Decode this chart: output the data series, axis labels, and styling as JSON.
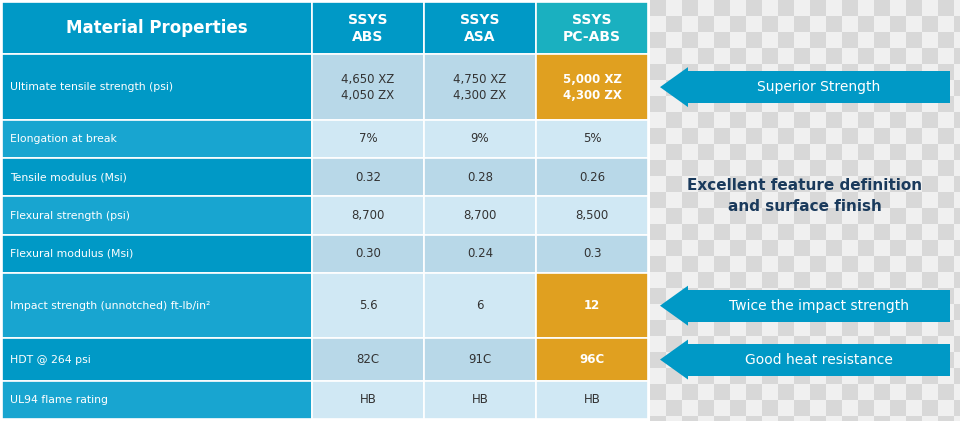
{
  "header_bg": "#0099c6",
  "header_pc_abs_bg": "#1ab0c0",
  "row_label_bg_dark": "#0099c6",
  "row_label_bg_light": "#18a5d0",
  "row_data_bg_dark": "#b8d8e8",
  "row_data_bg_light": "#d0e8f4",
  "highlight_orange": "#e0a020",
  "arrow_color": "#0099c6",
  "text_white": "#ffffff",
  "text_dark": "#1a3a5c",
  "text_cell_dark": "#444444",
  "headers": [
    "Material Properties",
    "SSYS\nABS",
    "SSYS\nASA",
    "SSYS\nPC-ABS"
  ],
  "rows": [
    {
      "label": "Ultimate tensile strength (psi)",
      "abs": "4,650 XZ\n4,050 ZX",
      "asa": "4,750 XZ\n4,300 ZX",
      "pcabs": "5,000 XZ\n4,300 ZX",
      "highlight": true,
      "tall": true
    },
    {
      "label": "Elongation at break",
      "abs": "7%",
      "asa": "9%",
      "pcabs": "5%",
      "highlight": false,
      "tall": false
    },
    {
      "label": "Tensile modulus (Msi)",
      "abs": "0.32",
      "asa": "0.28",
      "pcabs": "0.26",
      "highlight": false,
      "tall": false
    },
    {
      "label": "Flexural strength (psi)",
      "abs": "8,700",
      "asa": "8,700",
      "pcabs": "8,500",
      "highlight": false,
      "tall": false
    },
    {
      "label": "Flexural modulus (Msi)",
      "abs": "0.30",
      "asa": "0.24",
      "pcabs": "0.3",
      "highlight": false,
      "tall": false
    },
    {
      "label": "Impact strength (unnotched) ft-lb/in²",
      "abs": "5.6",
      "asa": "6",
      "pcabs": "12",
      "highlight": true,
      "tall": true
    },
    {
      "label": "HDT @ 264 psi",
      "abs": "82C",
      "asa": "91C",
      "pcabs": "96C",
      "highlight": true,
      "tall": false
    },
    {
      "label": "UL94 flame rating",
      "abs": "HB",
      "asa": "HB",
      "pcabs": "HB",
      "highlight": false,
      "tall": false
    }
  ],
  "center_text": "Excellent feature definition\nand surface finish",
  "arrow_labels": [
    "Superior Strength",
    "Twice the impact strength",
    "Good heat resistance"
  ],
  "checker_light": "#d8d8d8",
  "checker_dark": "#f0f0f0"
}
